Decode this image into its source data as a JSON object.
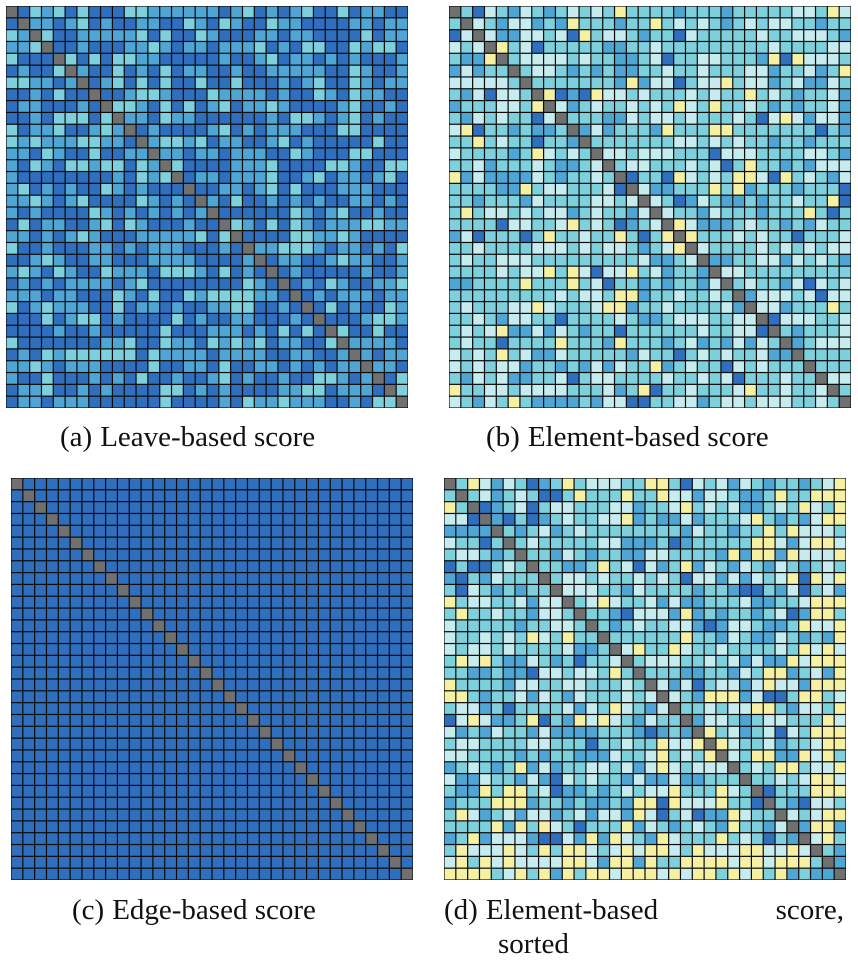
{
  "figure": {
    "panels": [
      {
        "id": "a",
        "tag": "(a)",
        "caption": "Leave-based score"
      },
      {
        "id": "b",
        "tag": "(b)",
        "caption": "Element-based score"
      },
      {
        "id": "c",
        "tag": "(c)",
        "caption": "Edge-based score"
      },
      {
        "id": "d",
        "tag": "(d)",
        "caption_line1a": "Element-based",
        "caption_line1b": "score,",
        "caption_line2": "sorted"
      }
    ]
  },
  "palette": {
    "diag": "#707070",
    "levels": [
      "#2f6fbe",
      "#4fa6d4",
      "#7ed0dc",
      "#c7ecef",
      "#f5f0a2"
    ],
    "grid": "#0b0b0b"
  },
  "chart_data": [
    {
      "type": "heatmap",
      "title": "(a) Leave-based score",
      "n": 34,
      "diagonal": "gray",
      "seed": 7,
      "level_weights": [
        0.45,
        0.38,
        0.17,
        0,
        0
      ]
    },
    {
      "type": "heatmap",
      "title": "(b) Element-based score",
      "n": 34,
      "diagonal": "gray",
      "seed": 19,
      "level_weights": [
        0.04,
        0.12,
        0.5,
        0.28,
        0.06
      ]
    },
    {
      "type": "heatmap",
      "title": "(c) Edge-based score",
      "n": 34,
      "diagonal": "gray",
      "seed": 3,
      "level_weights": [
        1,
        0,
        0,
        0,
        0
      ]
    },
    {
      "type": "heatmap",
      "title": "(d) Element-based score, sorted",
      "n": 34,
      "diagonal": "gray",
      "seed": 41,
      "level_weights": [
        0.05,
        0.2,
        0.4,
        0.27,
        0.08
      ],
      "sorted": true
    }
  ]
}
